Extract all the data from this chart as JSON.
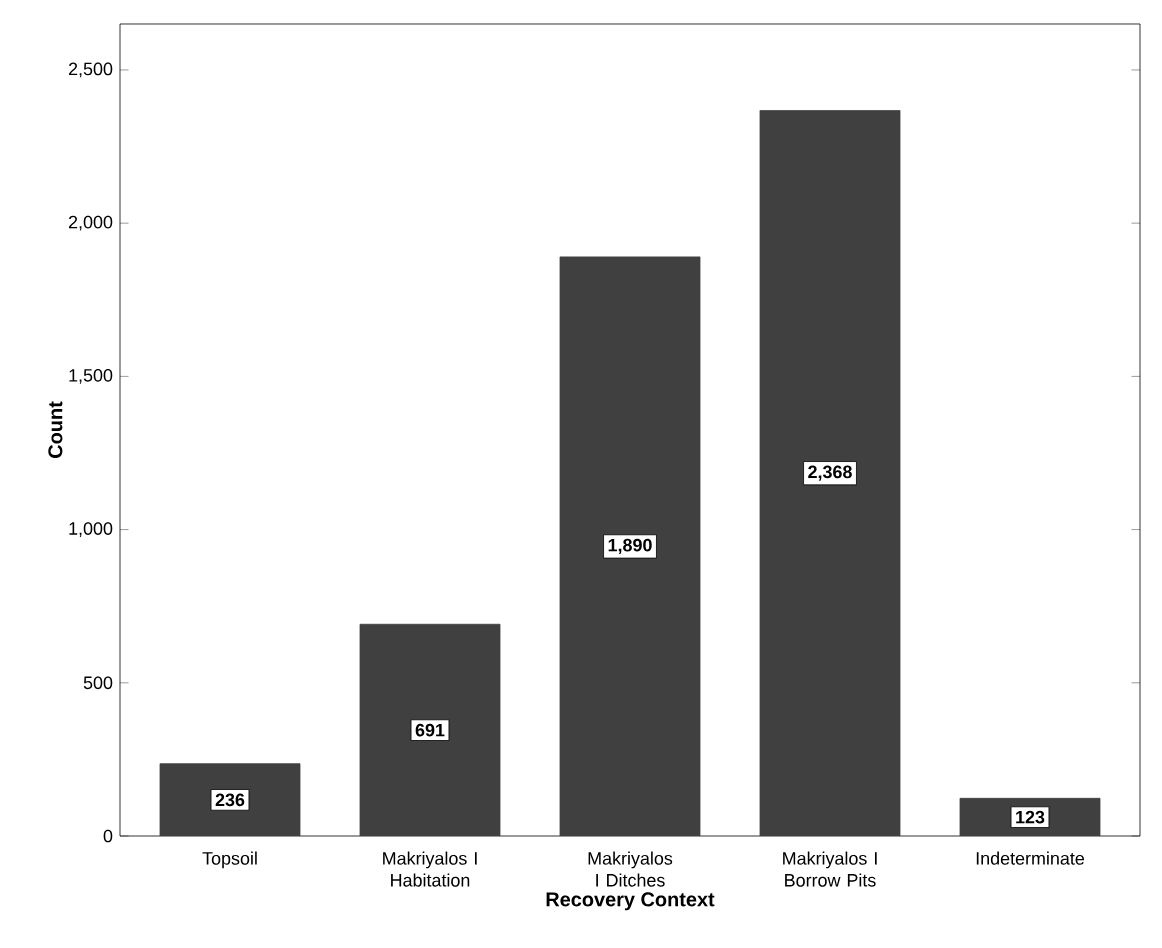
{
  "chart_data": {
    "type": "bar",
    "xlabel": "Recovery Context",
    "ylabel": "Count",
    "categories": [
      "Topsoil",
      "Makriyalos I Habitation",
      "Makriyalos I Ditches",
      "Makriyalos I Borrow Pits",
      "Indeterminate"
    ],
    "values": [
      236,
      691,
      1890,
      2368,
      123
    ],
    "value_labels": [
      "236",
      "691",
      "1,890",
      "2,368",
      "123"
    ],
    "color": "#404040",
    "ylim": [
      0,
      2650
    ],
    "yticks": [
      0,
      500,
      {
        "value": 1000,
        "label": "1,000"
      },
      {
        "value": 1500,
        "label": "1,500"
      },
      {
        "value": 2000,
        "label": "2,000"
      },
      {
        "value": 2500,
        "label": "2,500"
      }
    ],
    "grid": false
  }
}
